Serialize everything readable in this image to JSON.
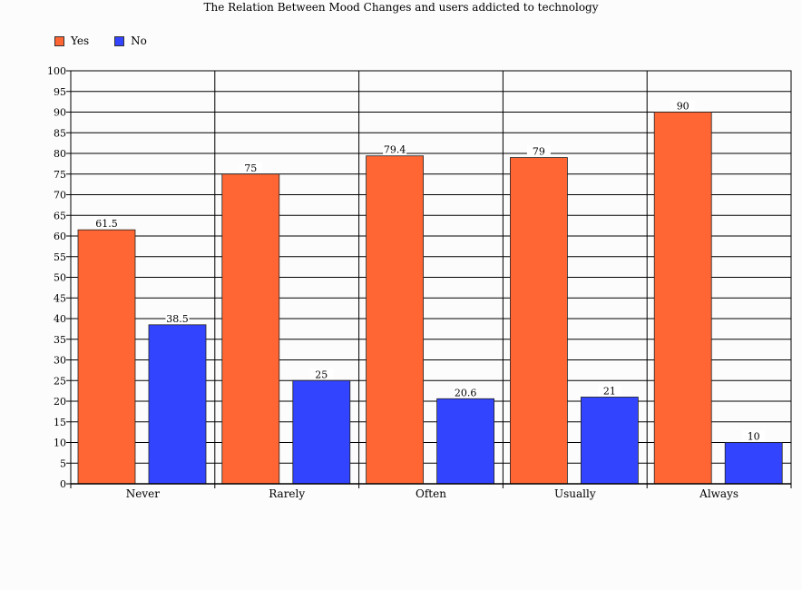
{
  "chart_data": {
    "type": "bar",
    "title": "The Relation Between Mood Changes and users addicted to technology",
    "xlabel": "",
    "ylabel": "",
    "categories": [
      "Never",
      "Rarely",
      "Often",
      "Usually",
      "Always"
    ],
    "series": [
      {
        "name": "Yes",
        "color": "#ff6633",
        "values": [
          61.5,
          75,
          79.4,
          79,
          90
        ]
      },
      {
        "name": "No",
        "color": "#3344ff",
        "values": [
          38.5,
          25,
          20.6,
          21,
          10
        ]
      }
    ],
    "ylim": [
      0,
      100
    ],
    "ytick_step": 5,
    "grid": true,
    "legend_position": "top-left"
  }
}
